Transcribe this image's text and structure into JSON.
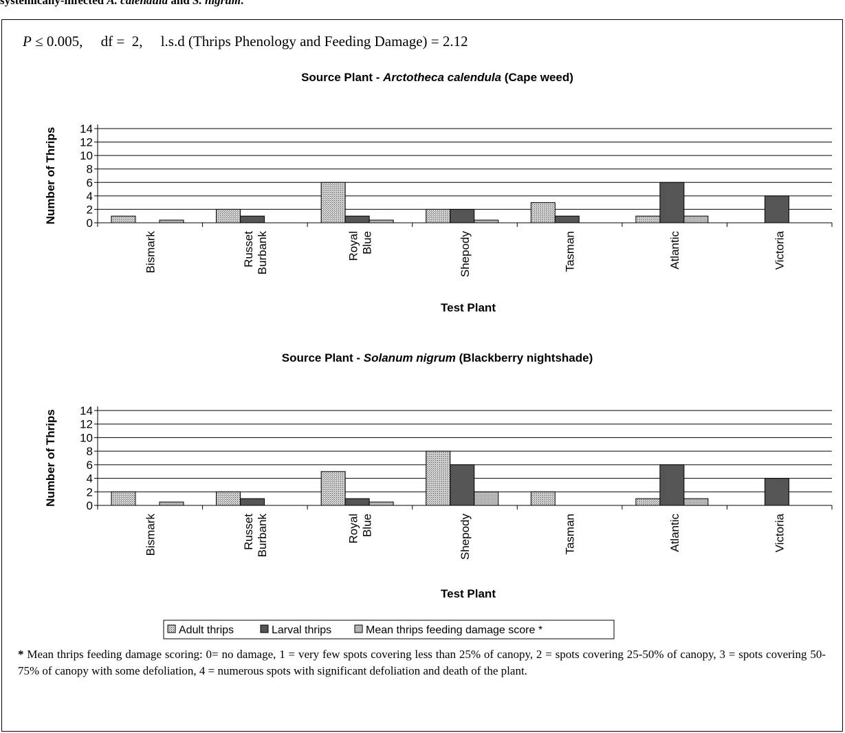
{
  "caption": "systemically-infected A. calendula and S. nigrum.",
  "stats": {
    "text": "P ≤ 0.005,     df =  2,     l.s.d (Thrips Phenology and Feeding Damage) = 2.12"
  },
  "legend": {
    "items": [
      "Adult thrips",
      "Larval thrips",
      "Mean thrips feeding damage score *"
    ]
  },
  "footnote": {
    "star": "*",
    "text": " Mean thrips feeding damage scoring: 0= no damage, 1 = very few spots covering less than 25% of canopy, 2 = spots covering 25-50% of canopy, 3 = spots covering 50-75% of canopy with some defoliation, 4 = numerous spots with significant defoliation and death of the plant."
  },
  "colors": {
    "adult": "#bdbdbd",
    "larval": "#555555",
    "damage": "#a9a9a9"
  },
  "chart_data": [
    {
      "type": "bar",
      "title": "Source Plant -  Arctotheca calendula  (Cape weed)",
      "xlabel": "Test Plant",
      "ylabel": "Number of Thrips",
      "ylim": [
        0,
        14
      ],
      "yticks": [
        0,
        2,
        4,
        6,
        8,
        10,
        12,
        14
      ],
      "grid": true,
      "legend": "bottom",
      "categories": [
        [
          "Bismark"
        ],
        [
          "Russet",
          "Burbank"
        ],
        [
          "Royal",
          "Blue"
        ],
        [
          "Shepody"
        ],
        [
          "Tasman"
        ],
        [
          "Atlantic"
        ],
        [
          "Victoria"
        ]
      ],
      "series": [
        {
          "name": "Adult thrips",
          "values": [
            1,
            2,
            6,
            2,
            3,
            1,
            0
          ]
        },
        {
          "name": "Larval thrips",
          "values": [
            0,
            1,
            1,
            2,
            1,
            6,
            4
          ]
        },
        {
          "name": "Mean thrips feeding damage score *",
          "values": [
            0.4,
            0,
            0.4,
            0.4,
            0,
            1,
            0
          ]
        }
      ]
    },
    {
      "type": "bar",
      "title": "Source Plant -  Solanum nigrum  (Blackberry nightshade)",
      "xlabel": "Test Plant",
      "ylabel": "Number of Thrips",
      "ylim": [
        0,
        14
      ],
      "yticks": [
        0,
        2,
        4,
        6,
        8,
        10,
        12,
        14
      ],
      "grid": true,
      "legend": "bottom",
      "categories": [
        [
          "Bismark"
        ],
        [
          "Russet",
          "Burbank"
        ],
        [
          "Royal",
          "Blue"
        ],
        [
          "Shepody"
        ],
        [
          "Tasman"
        ],
        [
          "Atlantic"
        ],
        [
          "Victoria"
        ]
      ],
      "series": [
        {
          "name": "Adult thrips",
          "values": [
            2,
            2,
            5,
            8,
            2,
            1,
            0
          ]
        },
        {
          "name": "Larval thrips",
          "values": [
            0,
            1,
            1,
            6,
            0,
            6,
            4
          ]
        },
        {
          "name": "Mean thrips feeding damage score *",
          "values": [
            0.5,
            0,
            0.5,
            2,
            0,
            1,
            0
          ]
        }
      ]
    }
  ]
}
